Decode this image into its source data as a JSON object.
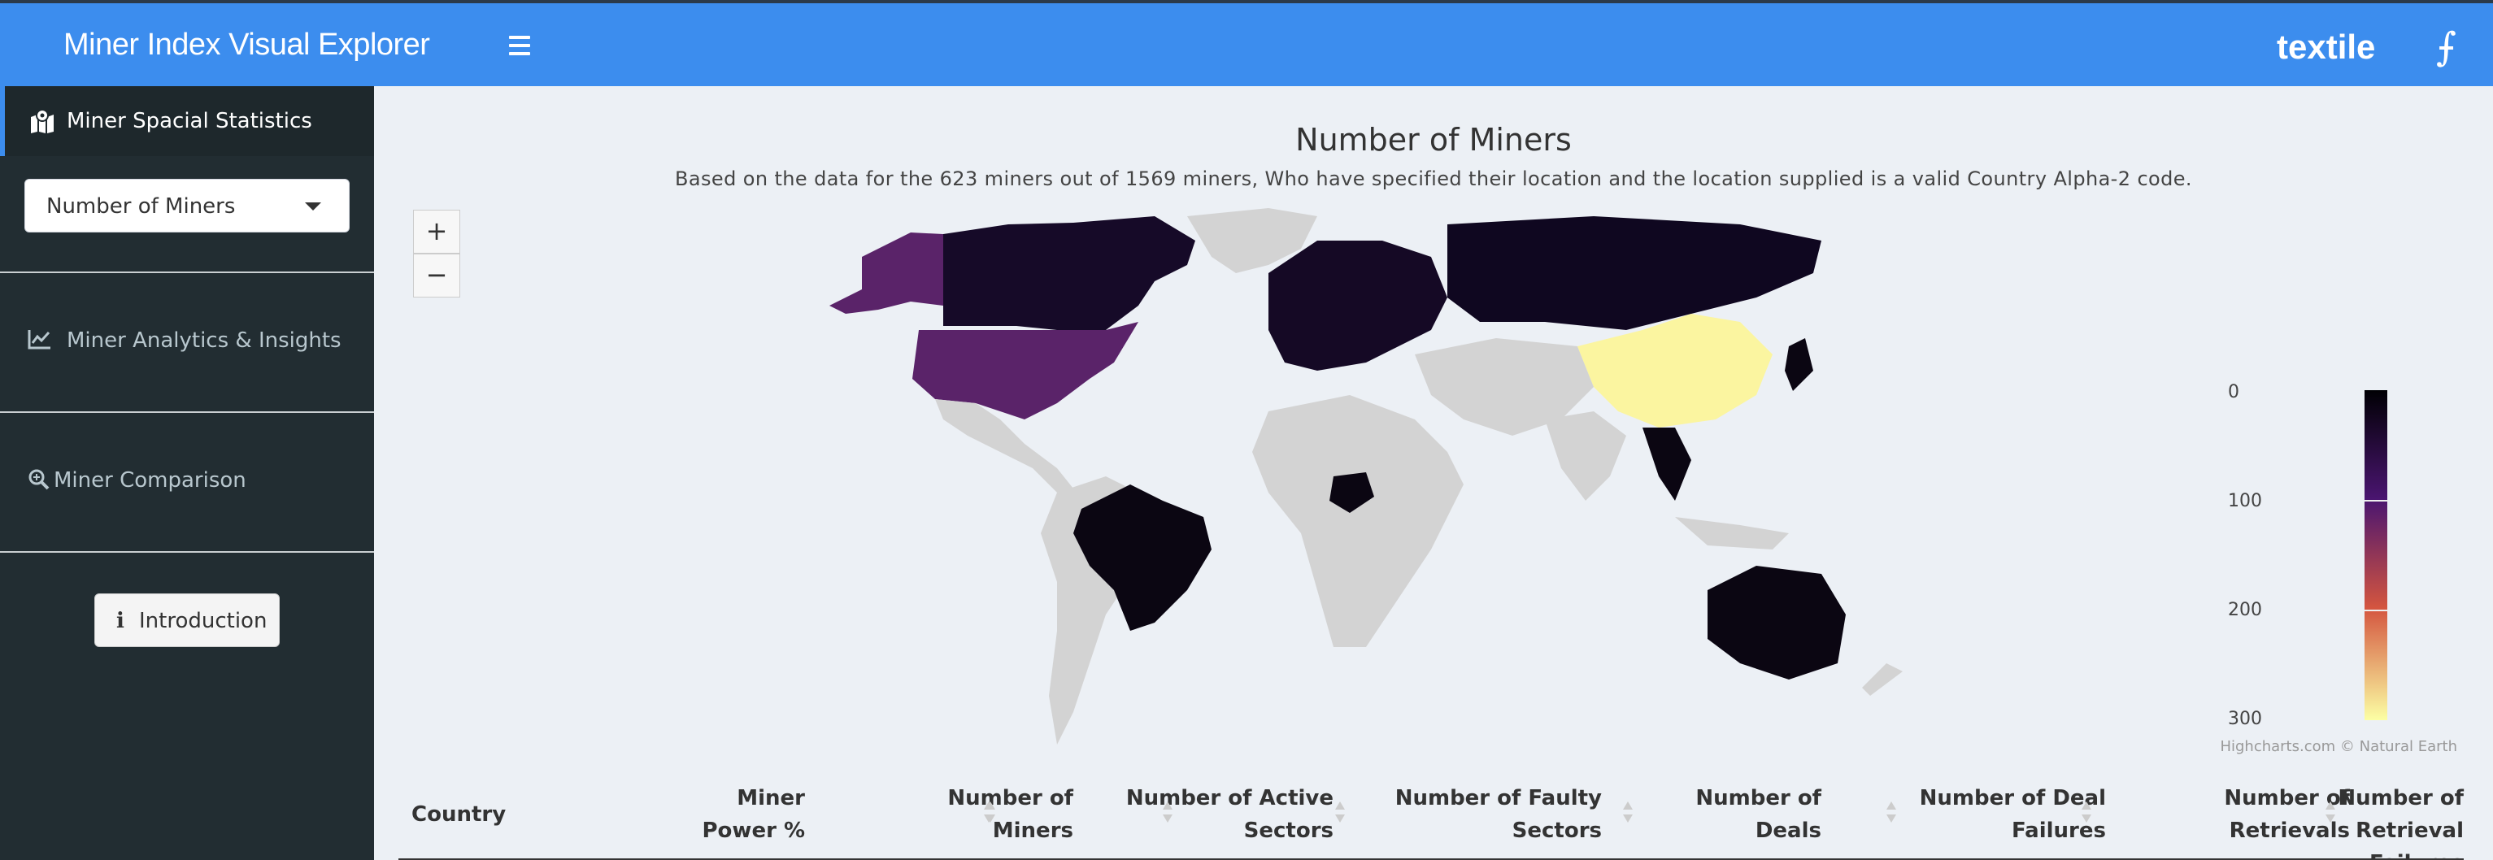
{
  "header": {
    "brand": "Miner Index Visual Explorer",
    "partner_logo": "textile",
    "filecoin_logo": "⨍"
  },
  "sidebar": {
    "items": [
      {
        "label": "Miner Spacial Statistics",
        "icon": "map-icon",
        "active": true
      },
      {
        "label": "Miner Analytics & Insights",
        "icon": "line-chart-icon",
        "active": false
      },
      {
        "label": "Miner Comparison",
        "icon": "search-icon",
        "active": false
      }
    ],
    "metric_select": {
      "value": "Number of Miners"
    },
    "intro_button": {
      "label": "Introduction"
    }
  },
  "map": {
    "title": "Number of Miners",
    "subtitle": "Based on the data for the 623 miners out of 1569 miners, Who have specified their location and the location supplied is a valid Country Alpha-2 code.",
    "zoom_in": "+",
    "zoom_out": "−",
    "credits": "Highcharts.com © Natural Earth",
    "legend": {
      "ticks": [
        "0",
        "100",
        "200",
        "300"
      ]
    },
    "colors": {
      "none": "#d3d3d3",
      "low": "#0c0616",
      "us": "#5a2369",
      "mid": "#2a0f45",
      "high": "#fbf5a0"
    }
  },
  "table": {
    "columns": [
      {
        "line1": "",
        "line2": "Country"
      },
      {
        "line1": "Miner",
        "line2": "Power %"
      },
      {
        "line1": "Number of",
        "line2": "Miners"
      },
      {
        "line1": "Number of Active",
        "line2": "Sectors"
      },
      {
        "line1": "Number of Faulty",
        "line2": "Sectors"
      },
      {
        "line1": "Number of",
        "line2": "Deals"
      },
      {
        "line1": "Number of Deal",
        "line2": "Failures"
      },
      {
        "line1": "Number of",
        "line2": "Retrievals"
      },
      {
        "line1": "Number of Retrieval",
        "line2": "Failures"
      }
    ]
  }
}
